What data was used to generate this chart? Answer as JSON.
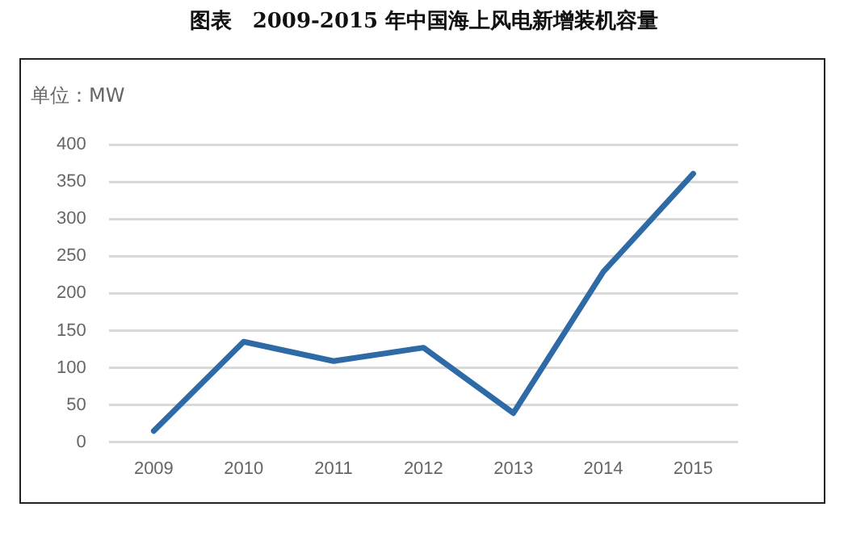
{
  "chart_data": {
    "type": "line",
    "title": "图表　2009-2015 年中国海上风电新增装机容量",
    "ylabel": "单位：MW",
    "categories": [
      "2009",
      "2010",
      "2011",
      "2012",
      "2013",
      "2014",
      "2015"
    ],
    "series": [
      {
        "color": "#2e6aa6",
        "values": [
          15,
          135,
          109,
          127,
          39,
          229,
          361
        ]
      }
    ],
    "ylim": [
      0,
      400
    ],
    "yticks": [
      0,
      50,
      100,
      150,
      200,
      250,
      300,
      350,
      400
    ],
    "grid": "y",
    "legend": false,
    "marker": "none",
    "line_style": "solid"
  }
}
